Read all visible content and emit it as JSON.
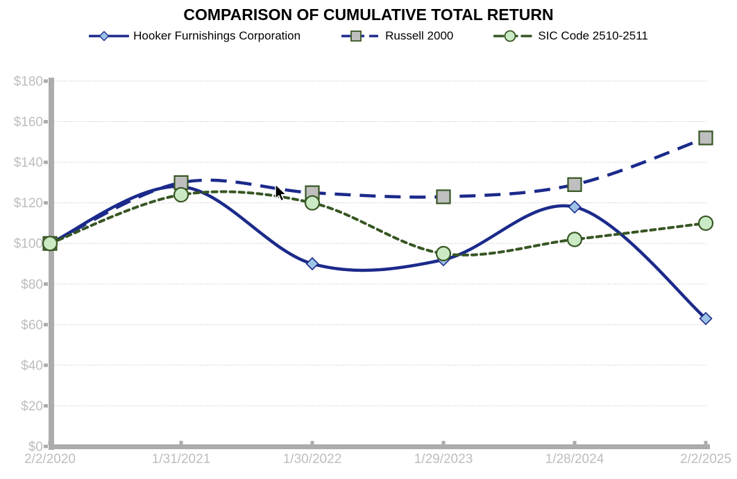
{
  "page": {
    "background": "#ffffff"
  },
  "chart_data": {
    "type": "line",
    "title": "COMPARISON OF CUMULATIVE TOTAL RETURN",
    "categories": [
      "2/2/2020",
      "1/31/2021",
      "1/30/2022",
      "1/29/2023",
      "1/28/2024",
      "2/2/2025"
    ],
    "series": [
      {
        "name": "Hooker Furnishings Corporation",
        "values": [
          100,
          128,
          90,
          92,
          118,
          63
        ],
        "color": "#1B2A8A",
        "line_style": "solid",
        "marker": "diamond",
        "marker_fill": "#9DC3E6",
        "marker_stroke": "#1B2A8A"
      },
      {
        "name": "Russell 2000",
        "values": [
          100,
          130,
          125,
          123,
          129,
          152
        ],
        "color": "#1B2A8A",
        "line_style": "long-dash",
        "marker": "square",
        "marker_fill": "#BFBFBF",
        "marker_stroke": "#375623"
      },
      {
        "name": "SIC Code 2510-2511",
        "values": [
          100,
          124,
          120,
          95,
          102,
          110
        ],
        "color": "#375623",
        "line_style": "short-dash",
        "marker": "circle",
        "marker_fill": "#C9EAC4",
        "marker_stroke": "#375623"
      }
    ],
    "ylim": [
      0,
      180
    ],
    "y_tick_step": 20,
    "y_tick_labels": [
      "$0",
      "$20",
      "$40",
      "$60",
      "$80",
      "$100",
      "$120",
      "$140",
      "$160",
      "$180"
    ],
    "x_tick_labels": [
      "2/2/2020",
      "1/31/2021",
      "1/30/2022",
      "1/29/2023",
      "1/28/2024",
      "2/2/2025"
    ],
    "grid": true,
    "legend_position": "top",
    "colors": {
      "axis": "#ACACAC",
      "grid": "#C6C6C6",
      "tick_label": "#BDBDBD"
    }
  }
}
